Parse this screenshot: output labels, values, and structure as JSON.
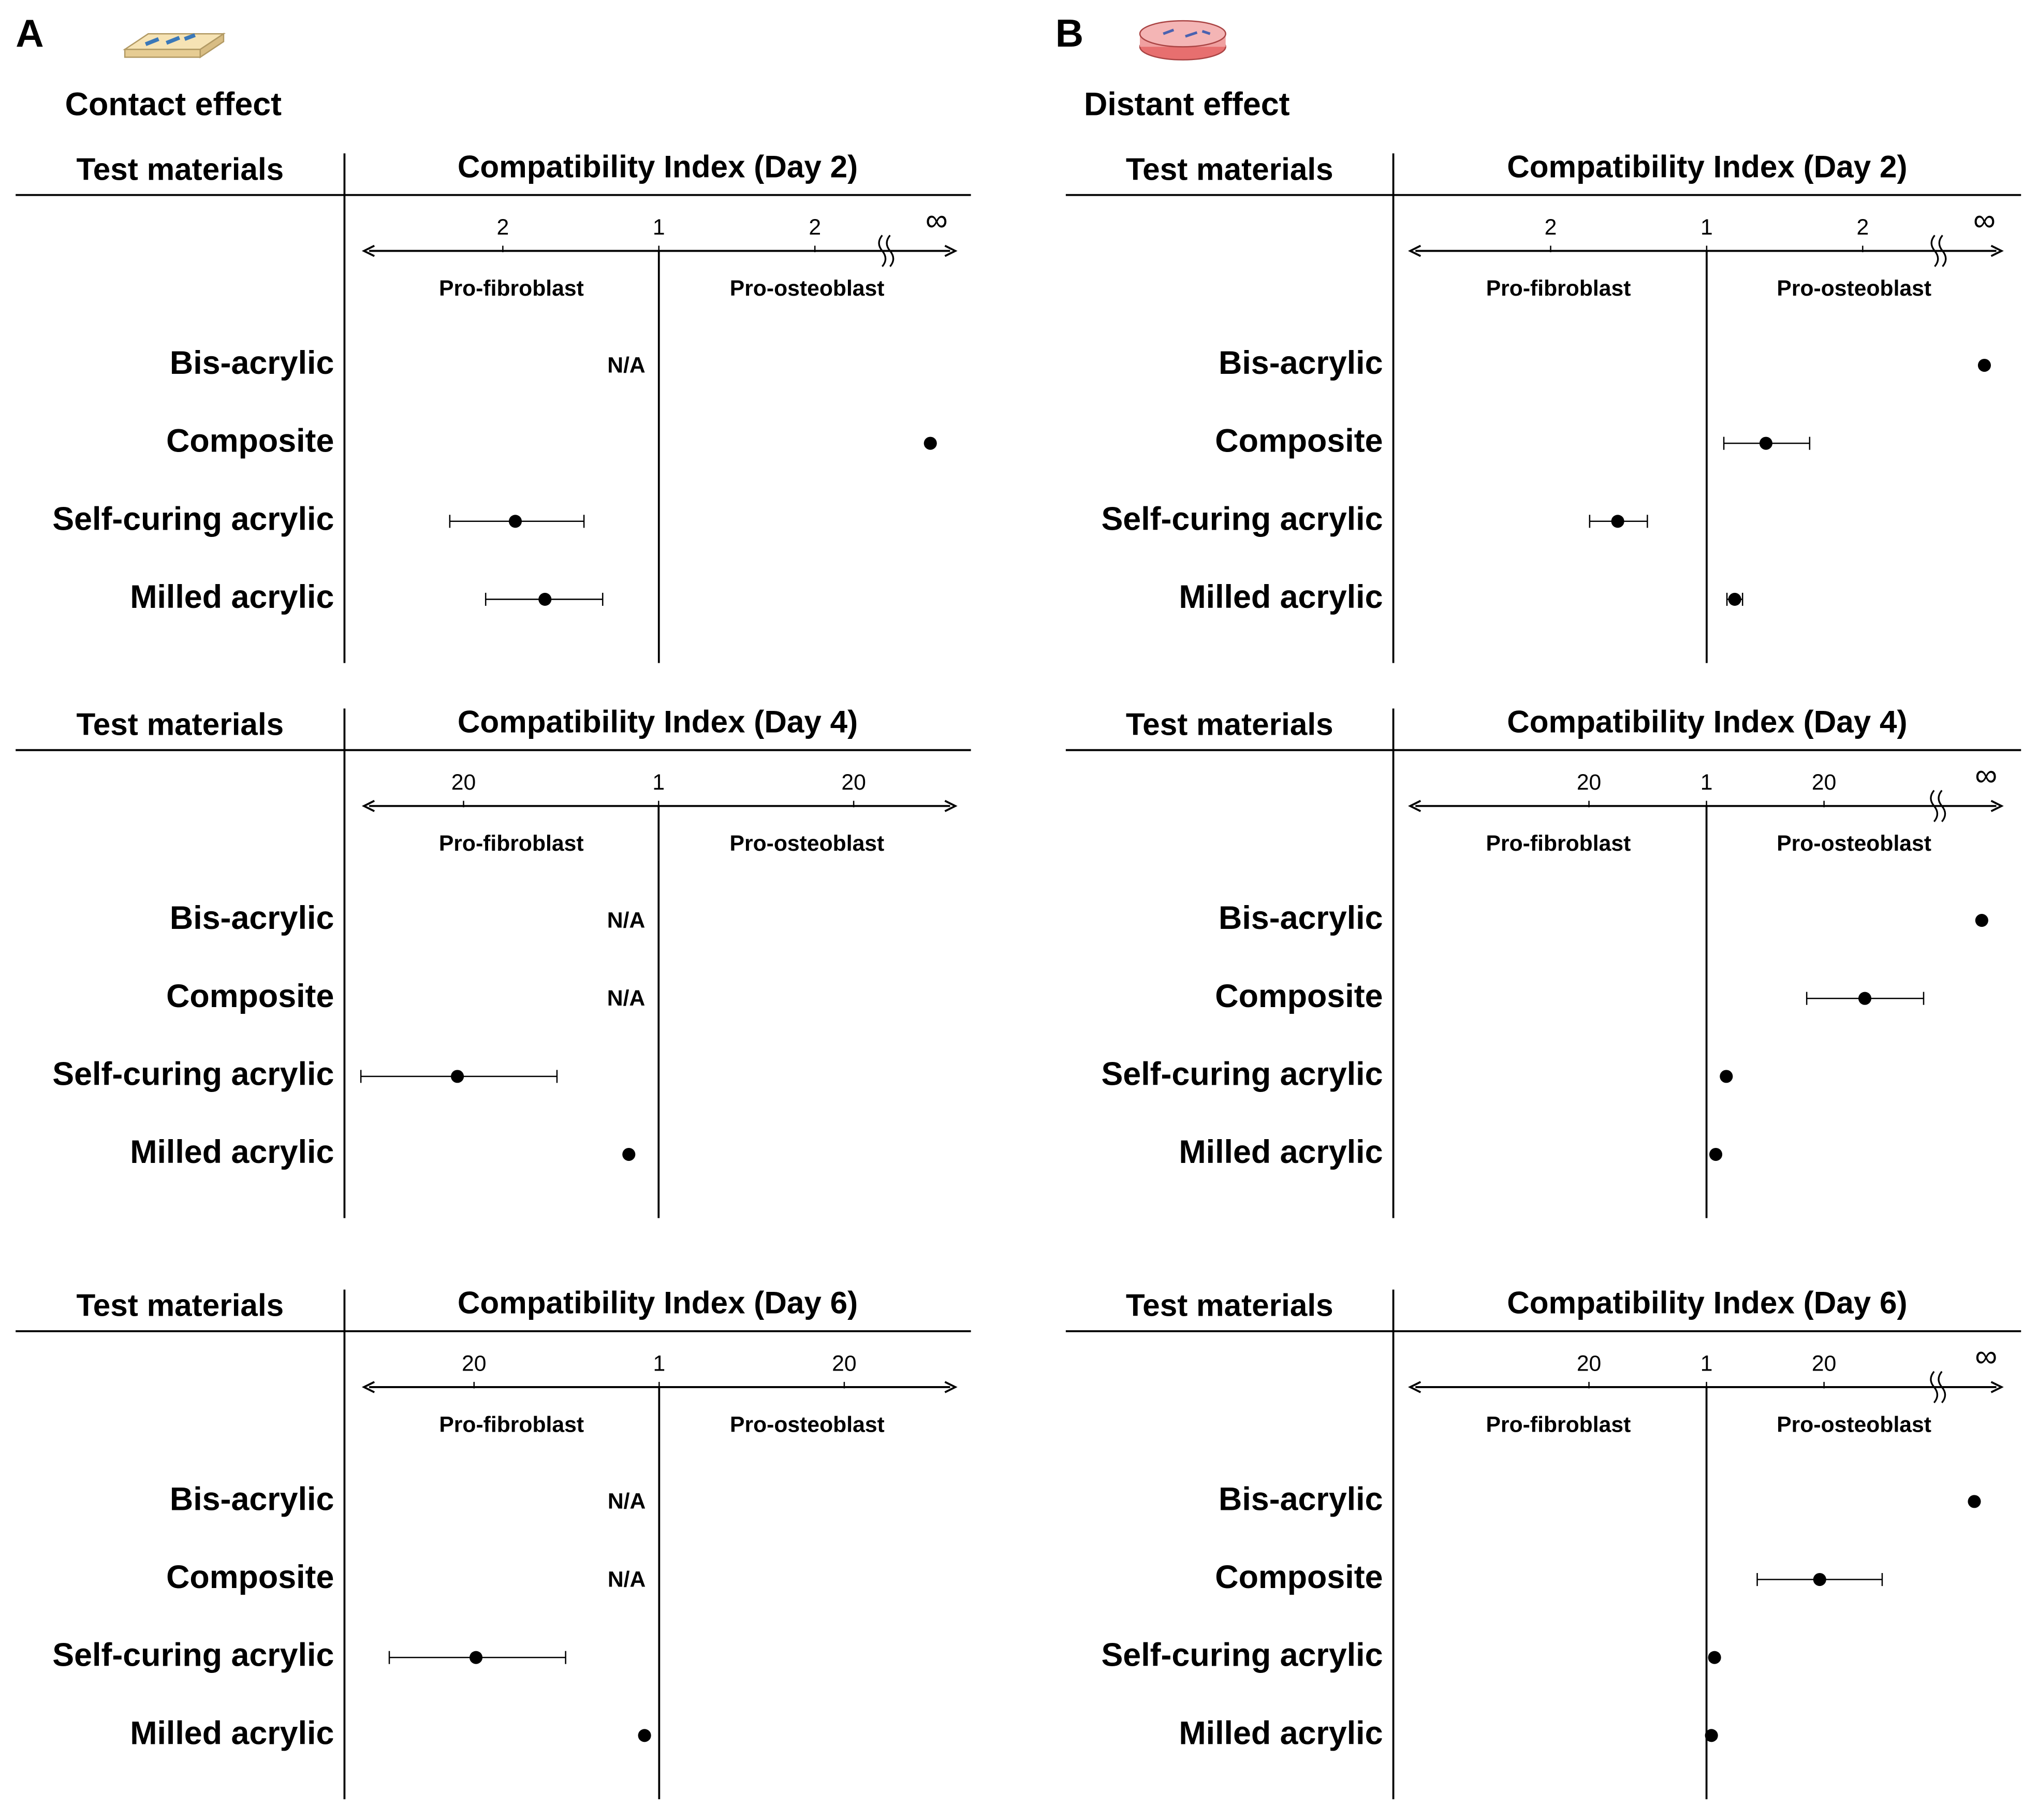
{
  "panels": [
    {
      "letter": "A",
      "heading": "Contact effect"
    },
    {
      "letter": "B",
      "heading": "Distant effect"
    }
  ],
  "chart_data": [
    {
      "type": "forest",
      "column_header": "Test materials",
      "title": "Compatibility Index (Day 2)",
      "left_label": "Pro-fibroblast",
      "right_label": "Pro-osteoblast",
      "categories": [
        "Bis-acrylic",
        "Composite",
        "Self-curing acrylic",
        "Milled acrylic"
      ],
      "values": [
        null,
        1.74,
        -0.92,
        -0.73
      ],
      "lower": [
        null,
        null,
        -1.34,
        -1.11
      ],
      "upper": [
        null,
        null,
        -0.48,
        -0.36
      ],
      "value_labels": [
        "N/A",
        null,
        null,
        null
      ],
      "xlim": [
        -1.89,
        1.9
      ],
      "xticks": [
        {
          "value": -1,
          "label": "2"
        },
        {
          "value": 0,
          "label": "1"
        },
        {
          "value": 1,
          "label": "2"
        },
        {
          "value": 1.78,
          "label": "∞"
        }
      ],
      "axis_break": 1.44,
      "color": "#000000"
    },
    {
      "type": "forest",
      "column_header": "Test materials",
      "title": "Compatibility Index (Day 4)",
      "left_label": "Pro-fibroblast",
      "right_label": "Pro-osteoblast",
      "categories": [
        "Bis-acrylic",
        "Composite",
        "Self-curing acrylic",
        "Milled acrylic"
      ],
      "values": [
        null,
        null,
        -19.6,
        -2.9
      ],
      "lower": [
        null,
        null,
        -29.0,
        null
      ],
      "upper": [
        null,
        null,
        -9.9,
        null
      ],
      "value_labels": [
        "N/A",
        "N/A",
        null,
        null
      ],
      "xlim": [
        -28.7,
        28.9
      ],
      "xticks": [
        {
          "value": -19,
          "label": "20"
        },
        {
          "value": 0,
          "label": "1"
        },
        {
          "value": 19,
          "label": "20"
        }
      ],
      "color": "#000000"
    },
    {
      "type": "forest",
      "column_header": "Test materials",
      "title": "Compatibility  Index (Day 6)",
      "left_label": "Pro-fibroblast",
      "right_label": "Pro-osteoblast",
      "categories": [
        "Bis-acrylic",
        "Composite",
        "Self-curing acrylic",
        "Milled acrylic"
      ],
      "values": [
        null,
        null,
        -18.8,
        -1.5
      ],
      "lower": [
        null,
        null,
        -27.7,
        null
      ],
      "upper": [
        null,
        null,
        -9.6,
        null
      ],
      "value_labels": [
        "N/A",
        "N/A",
        null,
        null
      ],
      "xlim": [
        -30.3,
        30.4
      ],
      "xticks": [
        {
          "value": -19,
          "label": "20"
        },
        {
          "value": 0,
          "label": "1"
        },
        {
          "value": 19,
          "label": "20"
        }
      ],
      "color": "#000000"
    },
    {
      "type": "forest",
      "column_header": "Test materials",
      "title": "Compatibility Index (Day 2)",
      "left_label": "Pro-fibroblast",
      "right_label": "Pro-osteoblast",
      "categories": [
        "Bis-acrylic",
        "Composite",
        "Self-curing acrylic",
        "Milled acrylic"
      ],
      "values": [
        1.78,
        0.38,
        -0.57,
        0.18
      ],
      "lower": [
        null,
        0.11,
        -0.75,
        0.13
      ],
      "upper": [
        null,
        0.66,
        -0.38,
        0.23
      ],
      "xlim": [
        -1.9,
        1.89
      ],
      "xticks": [
        {
          "value": -1,
          "label": "2"
        },
        {
          "value": 0,
          "label": "1"
        },
        {
          "value": 1,
          "label": "2"
        },
        {
          "value": 1.78,
          "label": "∞"
        }
      ],
      "axis_break": 1.47,
      "color": "#000000"
    },
    {
      "type": "forest",
      "column_header": "Test materials",
      "title": "Compatibility Index (Day 4)",
      "left_label": "Pro-fibroblast",
      "right_label": "Pro-osteoblast",
      "categories": [
        "Bis-acrylic",
        "Composite",
        "Self-curing acrylic",
        "Milled acrylic"
      ],
      "values": [
        44.5,
        25.6,
        3.2,
        1.5
      ],
      "lower": [
        null,
        16.2,
        null,
        null
      ],
      "upper": [
        null,
        35.1,
        null,
        null
      ],
      "xlim": [
        -47.9,
        47.7
      ],
      "xticks": [
        {
          "value": -19,
          "label": "20"
        },
        {
          "value": 0,
          "label": "1"
        },
        {
          "value": 19,
          "label": "20"
        },
        {
          "value": 45.2,
          "label": "∞"
        }
      ],
      "axis_break": 37,
      "color": "#000000"
    },
    {
      "type": "forest",
      "column_header": "Test materials",
      "title": "Compatibility Index (Day 6)",
      "left_label": "Pro-fibroblast",
      "right_label": "Pro-osteoblast",
      "categories": [
        "Bis-acrylic",
        "Composite",
        "Self-curing acrylic",
        "Milled acrylic"
      ],
      "values": [
        43.3,
        18.3,
        1.3,
        0.8
      ],
      "lower": [
        null,
        8.2,
        null,
        null
      ],
      "upper": [
        null,
        28.4,
        null,
        null
      ],
      "xlim": [
        -47.9,
        47.7
      ],
      "xticks": [
        {
          "value": -19,
          "label": "20"
        },
        {
          "value": 0,
          "label": "1"
        },
        {
          "value": 19,
          "label": "20"
        },
        {
          "value": 45.2,
          "label": "∞"
        }
      ],
      "axis_break": 37,
      "color": "#000000"
    }
  ]
}
